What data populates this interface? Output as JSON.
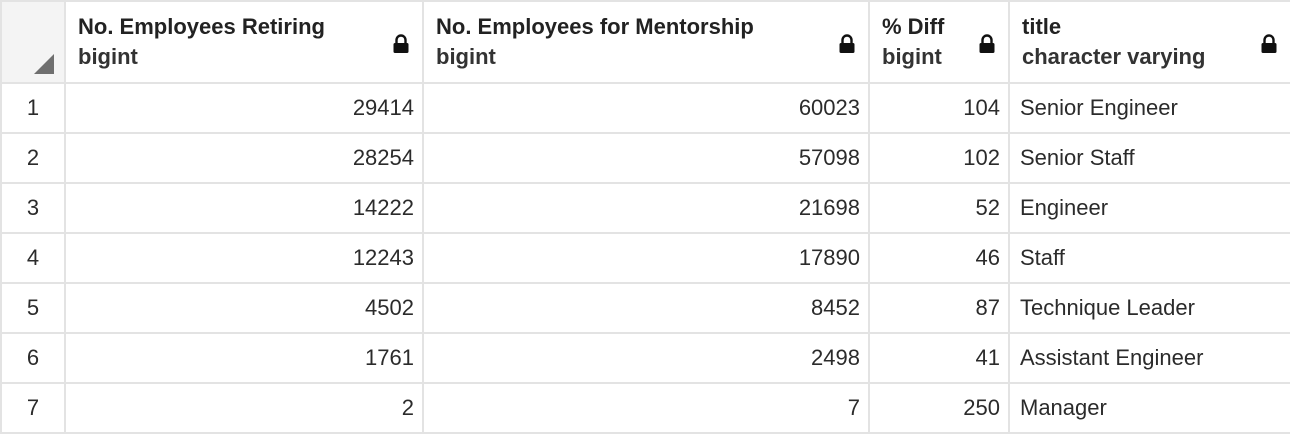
{
  "columns": [
    {
      "name": "No. Employees Retiring",
      "type": "bigint"
    },
    {
      "name": "No. Employees for Mentorship",
      "type": "bigint"
    },
    {
      "name": "% Diff",
      "type": "bigint"
    },
    {
      "name": "title",
      "type": "character varying"
    }
  ],
  "rows": [
    {
      "num": "1",
      "retiring": "29414",
      "mentorship": "60023",
      "diff": "104",
      "title": "Senior Engineer"
    },
    {
      "num": "2",
      "retiring": "28254",
      "mentorship": "57098",
      "diff": "102",
      "title": "Senior Staff"
    },
    {
      "num": "3",
      "retiring": "14222",
      "mentorship": "21698",
      "diff": "52",
      "title": "Engineer"
    },
    {
      "num": "4",
      "retiring": "12243",
      "mentorship": "17890",
      "diff": "46",
      "title": "Staff"
    },
    {
      "num": "5",
      "retiring": "4502",
      "mentorship": "8452",
      "diff": "87",
      "title": "Technique Leader"
    },
    {
      "num": "6",
      "retiring": "1761",
      "mentorship": "2498",
      "diff": "41",
      "title": "Assistant Engineer"
    },
    {
      "num": "7",
      "retiring": "2",
      "mentorship": "7",
      "diff": "250",
      "title": "Manager"
    }
  ],
  "icons": {
    "lock": "lock-icon",
    "corner": "select-all-corner"
  },
  "colors": {
    "grid_line": "#e3e3e3",
    "corner_bg": "#f4f4f4",
    "text": "#222222"
  }
}
